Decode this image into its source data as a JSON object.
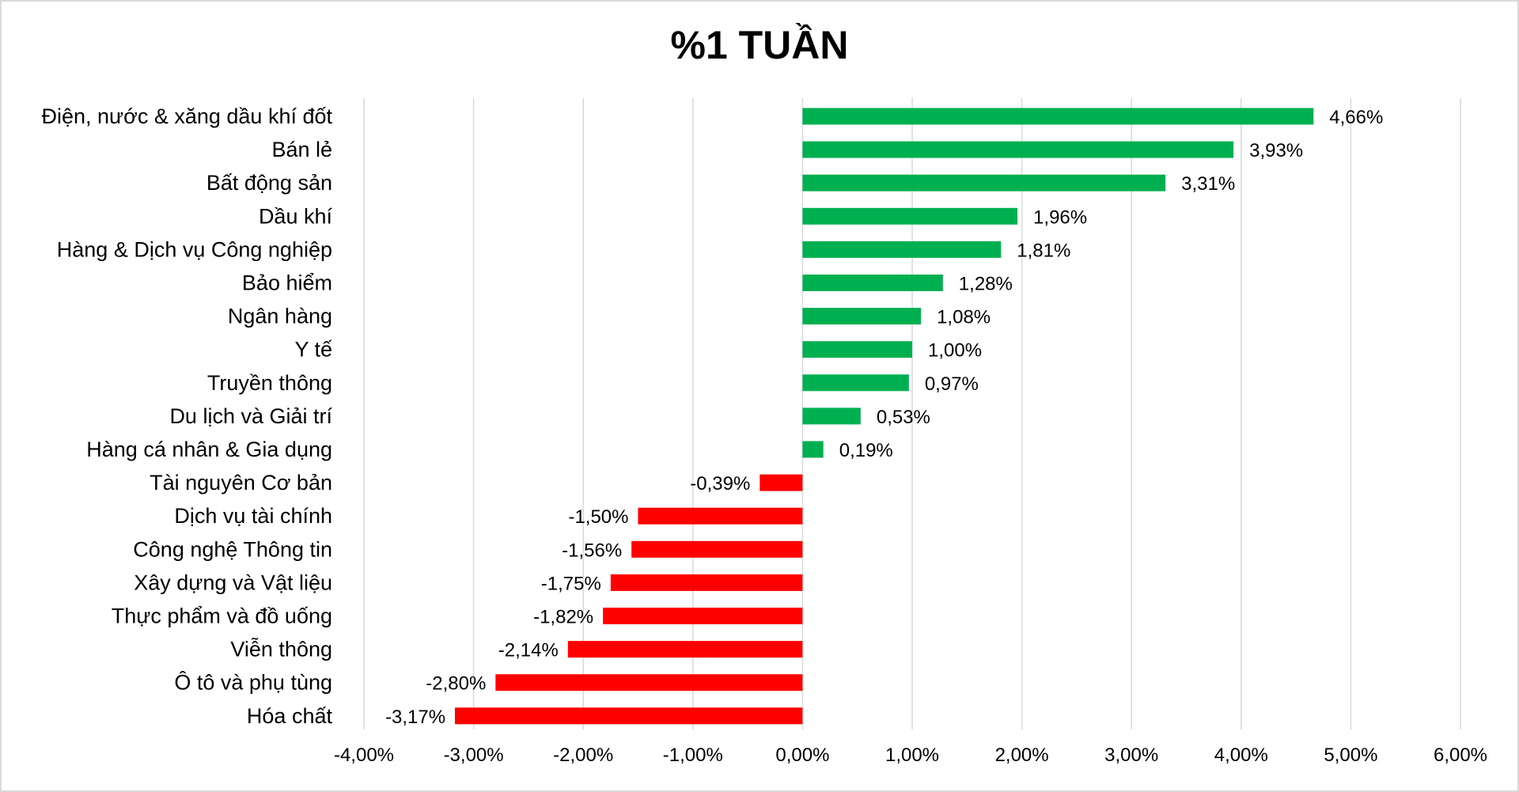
{
  "chart_data": {
    "type": "bar",
    "orientation": "horizontal",
    "title": "%1 TUẦN",
    "xlabel": "",
    "ylabel": "",
    "xlim": [
      -4,
      6
    ],
    "grid": true,
    "legend": "none",
    "positive_color": "#00b050",
    "negative_color": "#ff0000",
    "ticks": [
      "-4,00%",
      "-3,00%",
      "-2,00%",
      "-1,00%",
      "0,00%",
      "1,00%",
      "2,00%",
      "3,00%",
      "4,00%",
      "5,00%",
      "6,00%"
    ],
    "tick_values": [
      -4,
      -3,
      -2,
      -1,
      0,
      1,
      2,
      3,
      4,
      5,
      6
    ],
    "categories": [
      "Điện, nước & xăng dầu khí đốt",
      "Bán lẻ",
      "Bất động sản",
      "Dầu khí",
      "Hàng & Dịch vụ Công nghiệp",
      "Bảo hiểm",
      "Ngân hàng",
      "Y tế",
      "Truyền thông",
      "Du lịch và Giải trí",
      "Hàng cá nhân & Gia dụng",
      "Tài nguyên Cơ bản",
      "Dịch vụ tài chính",
      "Công nghệ Thông tin",
      "Xây dựng và Vật liệu",
      "Thực phẩm và đồ uống",
      "Viễn thông",
      "Ô tô và phụ tùng",
      "Hóa chất"
    ],
    "values": [
      4.66,
      3.93,
      3.31,
      1.96,
      1.81,
      1.28,
      1.08,
      1.0,
      0.97,
      0.53,
      0.19,
      -0.39,
      -1.5,
      -1.56,
      -1.75,
      -1.82,
      -2.14,
      -2.8,
      -3.17
    ],
    "data_labels": [
      "4,66%",
      "3,93%",
      "3,31%",
      "1,96%",
      "1,81%",
      "1,28%",
      "1,08%",
      "1,00%",
      "0,97%",
      "0,53%",
      "0,19%",
      "-0,39%",
      "-1,50%",
      "-1,56%",
      "-1,75%",
      "-1,82%",
      "-2,14%",
      "-2,80%",
      "-3,17%"
    ]
  }
}
